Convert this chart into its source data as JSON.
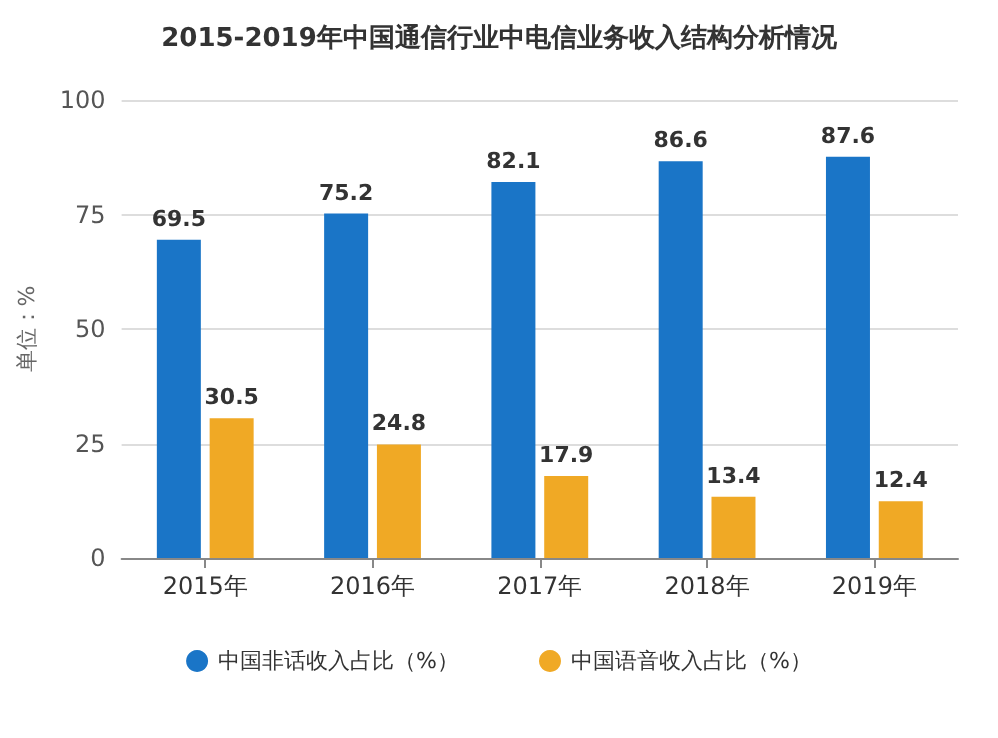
{
  "chart_data": {
    "type": "bar",
    "title": "2015-2019年中国通信行业中电信业务收入结构分析情况",
    "ylabel": "单位：%",
    "categories": [
      "2015年",
      "2016年",
      "2017年",
      "2018年",
      "2019年"
    ],
    "series": [
      {
        "name": "中国非话收入占比（%）",
        "color": "#1a75c7",
        "values": [
          69.5,
          75.2,
          82.1,
          86.6,
          87.6
        ]
      },
      {
        "name": "中国语音收入占比（%）",
        "color": "#f0a925",
        "values": [
          30.5,
          24.8,
          17.9,
          13.4,
          12.4
        ]
      }
    ],
    "ylim": [
      0,
      100
    ],
    "yticks": [
      0,
      25,
      50,
      75,
      100
    ],
    "grid": "y",
    "legend": "bottom",
    "data_labels": true
  }
}
